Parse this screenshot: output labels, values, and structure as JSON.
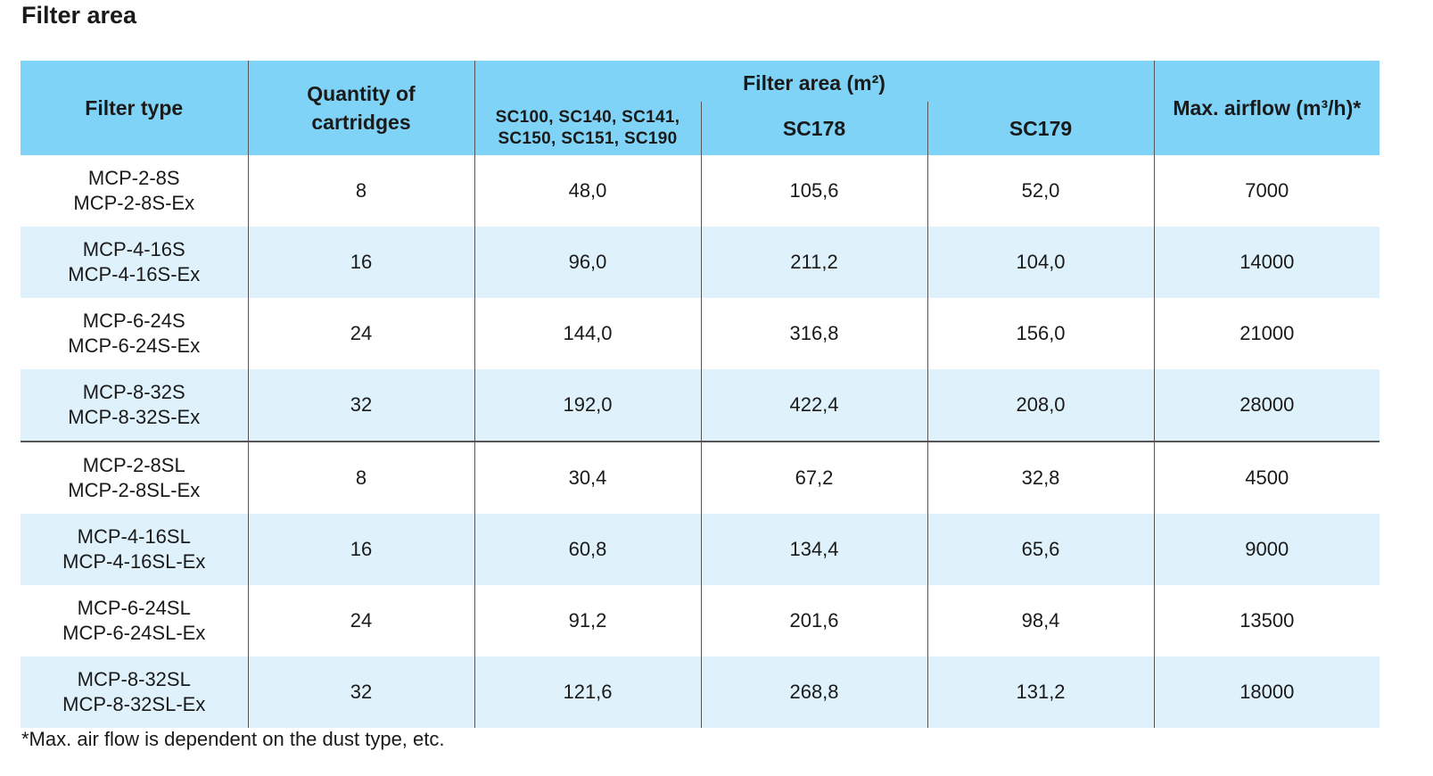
{
  "title": "Filter area",
  "table": {
    "headers": {
      "filter_type": "Filter type",
      "quantity": "Quantity of cartridges",
      "filter_area_group": "Filter area (m²)",
      "area_sub1": "SC100, SC140, SC141, SC150, SC151, SC190",
      "area_sub2": "SC178",
      "area_sub3": "SC179",
      "max_airflow": "Max. airflow (m³/h)*"
    },
    "rows": [
      {
        "type_line1": "MCP-2-8S",
        "type_line2": "MCP-2-8S-Ex",
        "quantity": "8",
        "area1": "48,0",
        "area2": "105,6",
        "area3": "52,0",
        "airflow": "7000"
      },
      {
        "type_line1": "MCP-4-16S",
        "type_line2": "MCP-4-16S-Ex",
        "quantity": "16",
        "area1": "96,0",
        "area2": "211,2",
        "area3": "104,0",
        "airflow": "14000"
      },
      {
        "type_line1": "MCP-6-24S",
        "type_line2": "MCP-6-24S-Ex",
        "quantity": "24",
        "area1": "144,0",
        "area2": "316,8",
        "area3": "156,0",
        "airflow": "21000"
      },
      {
        "type_line1": "MCP-8-32S",
        "type_line2": "MCP-8-32S-Ex",
        "quantity": "32",
        "area1": "192,0",
        "area2": "422,4",
        "area3": "208,0",
        "airflow": "28000"
      },
      {
        "type_line1": "MCP-2-8SL",
        "type_line2": "MCP-2-8SL-Ex",
        "quantity": "8",
        "area1": "30,4",
        "area2": "67,2",
        "area3": "32,8",
        "airflow": "4500"
      },
      {
        "type_line1": "MCP-4-16SL",
        "type_line2": "MCP-4-16SL-Ex",
        "quantity": "16",
        "area1": "60,8",
        "area2": "134,4",
        "area3": "65,6",
        "airflow": "9000"
      },
      {
        "type_line1": "MCP-6-24SL",
        "type_line2": "MCP-6-24SL-Ex",
        "quantity": "24",
        "area1": "91,2",
        "area2": "201,6",
        "area3": "98,4",
        "airflow": "13500"
      },
      {
        "type_line1": "MCP-8-32SL",
        "type_line2": "MCP-8-32SL-Ex",
        "quantity": "32",
        "area1": "121,6",
        "area2": "268,8",
        "area3": "131,2",
        "airflow": "18000"
      }
    ]
  },
  "footnote": "*Max. air flow is dependent on the dust type, etc.",
  "colors": {
    "header_bg": "#7fd3f7",
    "alt_row_bg": "#dff2fc",
    "divider": "#555555"
  }
}
